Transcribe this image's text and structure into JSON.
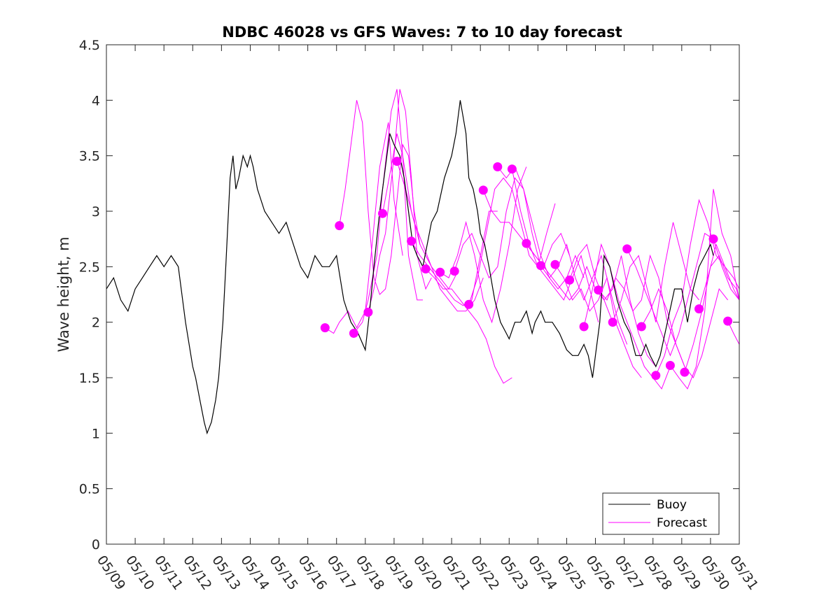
{
  "chart_data": {
    "type": "line",
    "title": "NDBC 46028 vs GFS Waves: 7 to 10 day forecast",
    "xlabel": "",
    "ylabel": "Wave height, m",
    "xlim": [
      0,
      22
    ],
    "ylim": [
      0,
      4.5
    ],
    "x_unit": "days since 05/09",
    "x_ticks": [
      0,
      1,
      2,
      3,
      4,
      5,
      6,
      7,
      8,
      9,
      10,
      11,
      12,
      13,
      14,
      15,
      16,
      17,
      18,
      19,
      20,
      21,
      22
    ],
    "x_tick_labels": [
      "05/09",
      "05/10",
      "05/11",
      "05/12",
      "05/13",
      "05/14",
      "05/15",
      "05/16",
      "05/17",
      "05/18",
      "05/19",
      "05/20",
      "05/21",
      "05/22",
      "05/23",
      "05/24",
      "05/25",
      "05/26",
      "05/27",
      "05/28",
      "05/29",
      "05/30",
      "05/31"
    ],
    "y_ticks": [
      0,
      0.5,
      1,
      1.5,
      2,
      2.5,
      3,
      3.5,
      4,
      4.5
    ],
    "y_tick_labels": [
      "0",
      "0.5",
      "1",
      "1.5",
      "2",
      "2.5",
      "3",
      "3.5",
      "4",
      "4.5"
    ],
    "legend": {
      "position": "bottom-right",
      "entries": [
        {
          "label": "Buoy",
          "color": "#000000"
        },
        {
          "label": "Forecast",
          "color": "#ff00ff"
        }
      ]
    },
    "grid": false,
    "colors": {
      "buoy": "#000000",
      "forecast": "#ff00ff"
    },
    "buoy": {
      "name": "Buoy",
      "x": [
        0,
        0.25,
        0.5,
        0.75,
        1,
        1.25,
        1.5,
        1.75,
        2,
        2.25,
        2.5,
        2.75,
        3,
        3.1,
        3.25,
        3.4,
        3.5,
        3.65,
        3.8,
        3.9,
        4.05,
        4.15,
        4.3,
        4.4,
        4.5,
        4.6,
        4.75,
        4.9,
        5,
        5.1,
        5.25,
        5.5,
        5.75,
        6,
        6.25,
        6.5,
        6.75,
        7,
        7.25,
        7.5,
        7.75,
        8,
        8.25,
        8.5,
        8.75,
        9,
        9.15,
        9.3,
        9.5,
        9.7,
        9.85,
        10,
        10.2,
        10.35,
        10.5,
        10.65,
        10.8,
        11,
        11.15,
        11.3,
        11.5,
        11.75,
        12,
        12.15,
        12.3,
        12.5,
        12.6,
        12.75,
        12.9,
        13,
        13.15,
        13.3,
        13.5,
        13.7,
        13.9,
        14,
        14.2,
        14.4,
        14.6,
        14.8,
        14.9,
        15.1,
        15.25,
        15.5,
        15.75,
        16,
        16.2,
        16.4,
        16.6,
        16.75,
        16.9,
        17,
        17.15,
        17.3,
        17.5,
        17.75,
        18,
        18.2,
        18.4,
        18.6,
        18.75,
        18.9,
        19.1,
        19.25,
        19.5,
        19.75,
        20,
        20.2,
        20.4,
        20.6,
        20.8,
        21,
        21.1
      ],
      "values": [
        2.3,
        2.4,
        2.2,
        2.1,
        2.3,
        2.4,
        2.5,
        2.6,
        2.5,
        2.6,
        2.5,
        2.0,
        1.6,
        1.5,
        1.3,
        1.1,
        1.0,
        1.1,
        1.3,
        1.5,
        2.0,
        2.5,
        3.3,
        3.5,
        3.2,
        3.3,
        3.5,
        3.4,
        3.5,
        3.4,
        3.2,
        3.0,
        2.9,
        2.8,
        2.9,
        2.7,
        2.5,
        2.4,
        2.6,
        2.5,
        2.5,
        2.6,
        2.2,
        2.0,
        1.9,
        1.75,
        2.1,
        2.5,
        3.0,
        3.4,
        3.7,
        3.6,
        3.5,
        3.3,
        3.0,
        2.7,
        2.6,
        2.5,
        2.7,
        2.9,
        3.0,
        3.3,
        3.5,
        3.7,
        4.0,
        3.7,
        3.3,
        3.2,
        3.0,
        2.8,
        2.7,
        2.5,
        2.2,
        2.0,
        1.9,
        1.85,
        2.0,
        2.0,
        2.1,
        1.9,
        2.0,
        2.1,
        2.0,
        2.0,
        1.9,
        1.75,
        1.7,
        1.7,
        1.8,
        1.7,
        1.5,
        1.7,
        2.0,
        2.6,
        2.5,
        2.2,
        2.0,
        1.9,
        1.7,
        1.7,
        1.8,
        1.7,
        1.6,
        1.7,
        2.0,
        2.3,
        2.3,
        2.0,
        2.3,
        2.5,
        2.6,
        2.7,
        2.6
      ]
    },
    "forecast_series": [
      {
        "x": [
          7.6,
          7.9,
          8.1,
          8.4,
          8.7,
          9.0,
          9.2,
          9.5,
          9.8,
          10.0,
          10.3
        ],
        "values": [
          1.95,
          1.9,
          2.0,
          2.1,
          1.95,
          2.1,
          2.6,
          3.4,
          3.8,
          3.1,
          2.6
        ]
      },
      {
        "x": [
          8.1,
          8.3,
          8.5,
          8.7,
          8.9,
          9.1,
          9.3,
          9.5,
          9.7,
          9.9,
          10.1,
          10.3,
          10.5,
          10.7,
          10.9
        ],
        "values": [
          2.87,
          3.2,
          3.6,
          4.0,
          3.8,
          3.0,
          2.4,
          2.25,
          2.3,
          2.6,
          3.1,
          3.6,
          3.5,
          3.0,
          2.7
        ]
      },
      {
        "x": [
          8.6,
          8.9,
          9.1,
          9.4,
          9.6,
          9.9,
          10.1,
          10.3,
          10.5,
          10.8,
          11.0
        ],
        "values": [
          1.9,
          2.0,
          2.2,
          2.6,
          3.2,
          3.9,
          4.1,
          3.5,
          2.6,
          2.2,
          2.2
        ]
      },
      {
        "x": [
          9.1,
          9.3,
          9.5,
          9.7,
          10.0,
          10.2,
          10.4,
          10.6,
          10.8,
          11.1,
          11.3
        ],
        "values": [
          2.09,
          2.3,
          2.6,
          2.8,
          3.5,
          4.1,
          3.9,
          3.3,
          2.6,
          2.3,
          2.4
        ]
      },
      {
        "x": [
          9.6,
          9.9,
          10.1,
          10.3,
          10.6,
          10.9,
          11.1,
          11.3,
          11.6,
          11.9,
          12.2
        ],
        "values": [
          2.98,
          3.4,
          3.7,
          3.5,
          3.0,
          2.7,
          2.6,
          2.5,
          2.4,
          2.3,
          2.45
        ]
      },
      {
        "x": [
          10.1,
          10.4,
          10.7,
          11.0,
          11.3,
          11.6,
          11.9,
          12.2,
          12.5,
          12.8,
          13.1
        ],
        "values": [
          3.45,
          3.2,
          2.9,
          2.7,
          2.5,
          2.3,
          2.2,
          2.1,
          2.1,
          2.2,
          2.4
        ]
      },
      {
        "x": [
          10.6,
          10.9,
          11.2,
          11.5,
          11.8,
          12.1,
          12.4,
          12.7,
          13.0,
          13.3,
          13.6
        ],
        "values": [
          2.73,
          2.6,
          2.5,
          2.4,
          2.3,
          2.2,
          2.15,
          2.2,
          2.6,
          3.0,
          3.0
        ]
      },
      {
        "x": [
          11.1,
          11.4,
          11.7,
          12.0,
          12.3,
          12.6,
          12.9,
          13.2,
          13.5,
          13.8,
          14.1
        ],
        "values": [
          2.48,
          2.4,
          2.3,
          2.3,
          2.2,
          2.1,
          2.0,
          1.85,
          1.6,
          1.45,
          1.5
        ]
      },
      {
        "x": [
          11.6,
          11.9,
          12.2,
          12.5,
          12.8,
          13.1,
          13.4,
          13.7,
          14.0,
          14.3,
          14.6
        ],
        "values": [
          2.45,
          2.4,
          2.6,
          2.9,
          2.6,
          2.2,
          2.0,
          2.3,
          2.7,
          3.2,
          3.4
        ]
      },
      {
        "x": [
          12.1,
          12.4,
          12.7,
          13.0,
          13.3,
          13.6,
          13.9,
          14.2,
          14.5,
          14.8,
          15.1
        ],
        "values": [
          2.46,
          2.7,
          2.8,
          2.6,
          2.4,
          2.5,
          3.0,
          3.3,
          3.2,
          2.8,
          2.5
        ]
      },
      {
        "x": [
          12.6,
          12.9,
          13.2,
          13.5,
          13.8,
          14.1,
          14.4,
          14.7,
          15.0,
          15.3,
          15.6
        ],
        "values": [
          2.16,
          2.4,
          2.8,
          3.2,
          3.3,
          3.2,
          2.9,
          2.6,
          2.5,
          2.8,
          3.07
        ]
      },
      {
        "x": [
          13.1,
          13.4,
          13.7,
          14.0,
          14.3,
          14.6,
          14.9,
          15.2,
          15.5,
          15.8,
          16.1
        ],
        "values": [
          3.19,
          3.0,
          2.9,
          2.9,
          2.8,
          2.7,
          2.6,
          2.5,
          2.7,
          2.8,
          2.6
        ]
      },
      {
        "x": [
          13.6,
          13.9,
          14.2,
          14.5,
          14.8,
          15.1,
          15.4,
          15.7,
          16.0,
          16.3,
          16.6
        ],
        "values": [
          3.4,
          3.3,
          3.4,
          3.2,
          2.9,
          2.6,
          2.4,
          2.3,
          2.4,
          2.6,
          2.4
        ]
      },
      {
        "x": [
          14.1,
          14.4,
          14.7,
          15.0,
          15.3,
          15.6,
          15.9,
          16.2,
          16.5,
          16.8,
          17.1
        ],
        "values": [
          3.38,
          3.0,
          2.7,
          2.5,
          2.4,
          2.3,
          2.2,
          2.4,
          2.6,
          2.3,
          2.0
        ]
      },
      {
        "x": [
          14.6,
          14.9,
          15.2,
          15.5,
          15.8,
          16.1,
          16.4,
          16.7,
          17.0,
          17.3,
          17.6
        ],
        "values": [
          2.71,
          2.6,
          2.5,
          2.4,
          2.3,
          2.2,
          2.3,
          2.5,
          2.3,
          2.2,
          2.0
        ]
      },
      {
        "x": [
          15.1,
          15.4,
          15.7,
          16.0,
          16.3,
          16.6,
          16.9,
          17.2,
          17.5,
          17.8,
          18.1
        ],
        "values": [
          2.51,
          2.4,
          2.5,
          2.7,
          2.4,
          2.2,
          2.4,
          2.6,
          2.3,
          2.0,
          1.8
        ]
      },
      {
        "x": [
          15.6,
          15.9,
          16.2,
          16.5,
          16.8,
          17.1,
          17.4,
          17.7,
          18.0,
          18.3,
          18.6
        ],
        "values": [
          2.52,
          2.4,
          2.2,
          2.3,
          2.1,
          2.2,
          2.4,
          2.0,
          1.8,
          1.6,
          1.5
        ]
      },
      {
        "x": [
          16.1,
          16.4,
          16.7,
          17.0,
          17.3,
          17.6,
          17.9,
          18.2,
          18.5,
          18.8,
          19.1
        ],
        "values": [
          2.38,
          2.6,
          2.7,
          2.4,
          2.2,
          2.3,
          2.6,
          2.2,
          1.9,
          1.7,
          1.6
        ]
      },
      {
        "x": [
          16.6,
          16.9,
          17.2,
          17.5,
          17.8,
          18.1,
          18.4,
          18.7,
          19.0,
          19.3,
          19.6
        ],
        "values": [
          1.96,
          2.3,
          2.7,
          2.5,
          2.2,
          2.0,
          1.8,
          1.6,
          1.5,
          1.4,
          1.6
        ]
      },
      {
        "x": [
          17.1,
          17.4,
          17.7,
          18.0,
          18.3,
          18.6,
          18.9,
          19.2,
          19.5,
          19.8,
          20.1
        ],
        "values": [
          2.29,
          2.2,
          2.4,
          2.3,
          2.1,
          2.2,
          2.6,
          2.4,
          2.0,
          1.8,
          1.6
        ]
      },
      {
        "x": [
          17.6,
          17.9,
          18.2,
          18.5,
          18.8,
          19.1,
          19.4,
          19.7,
          20.0,
          20.3,
          20.6
        ],
        "values": [
          2.0,
          2.2,
          2.5,
          2.6,
          2.3,
          2.0,
          2.5,
          2.9,
          2.6,
          2.3,
          2.2
        ]
      },
      {
        "x": [
          18.1,
          18.4,
          18.7,
          19.0,
          19.3,
          19.6,
          19.9,
          20.2,
          20.5,
          20.8,
          21.1
        ],
        "values": [
          2.66,
          2.5,
          2.3,
          2.1,
          1.9,
          1.7,
          1.9,
          2.2,
          2.5,
          2.8,
          2.75
        ]
      },
      {
        "x": [
          18.6,
          18.9,
          19.2,
          19.5,
          19.8,
          20.1,
          20.4,
          20.7,
          21.0,
          21.3,
          21.6
        ],
        "values": [
          1.96,
          2.1,
          2.3,
          2.1,
          1.8,
          1.6,
          1.5,
          1.7,
          2.0,
          2.3,
          2.2
        ]
      },
      {
        "x": [
          19.1,
          19.4,
          19.7,
          20.0,
          20.3,
          20.6,
          20.9,
          21.2,
          21.5,
          21.8,
          22.0
        ],
        "values": [
          1.52,
          1.7,
          2.0,
          2.2,
          2.7,
          3.1,
          2.9,
          2.6,
          2.5,
          2.4,
          2.3
        ]
      },
      {
        "x": [
          19.6,
          19.9,
          20.2,
          20.5,
          20.8,
          21.1,
          21.4,
          21.7,
          22.0
        ],
        "values": [
          1.61,
          1.5,
          1.4,
          1.6,
          2.1,
          3.2,
          2.8,
          2.6,
          2.2
        ]
      },
      {
        "x": [
          20.1,
          20.4,
          20.7,
          21.0,
          21.3,
          21.6,
          21.9,
          22.0
        ],
        "values": [
          1.55,
          1.8,
          2.1,
          2.5,
          2.6,
          2.4,
          2.3,
          2.2
        ]
      },
      {
        "x": [
          20.6,
          20.9,
          21.2,
          21.5,
          21.8,
          22.0
        ],
        "values": [
          2.12,
          2.4,
          2.7,
          2.5,
          2.3,
          2.2
        ]
      },
      {
        "x": [
          21.1,
          21.4,
          21.7,
          22.0
        ],
        "values": [
          2.75,
          2.5,
          2.3,
          2.2
        ]
      },
      {
        "x": [
          21.6,
          21.8,
          22.0
        ],
        "values": [
          2.01,
          1.9,
          1.8
        ]
      }
    ],
    "forecast_markers": {
      "x": [
        7.6,
        8.1,
        8.6,
        9.1,
        9.6,
        10.1,
        10.6,
        11.1,
        11.6,
        12.1,
        12.6,
        13.1,
        13.6,
        14.1,
        14.6,
        15.1,
        15.6,
        16.1,
        16.6,
        17.1,
        17.6,
        18.1,
        18.6,
        19.1,
        19.6,
        20.1,
        20.6,
        21.1,
        21.6
      ],
      "values": [
        1.95,
        2.87,
        1.9,
        2.09,
        2.98,
        3.45,
        2.73,
        2.48,
        2.45,
        2.46,
        2.16,
        3.19,
        3.4,
        3.38,
        2.71,
        2.51,
        2.52,
        2.38,
        1.96,
        2.29,
        2.0,
        2.66,
        1.96,
        1.52,
        1.61,
        1.55,
        2.12,
        2.75,
        2.01
      ]
    }
  }
}
